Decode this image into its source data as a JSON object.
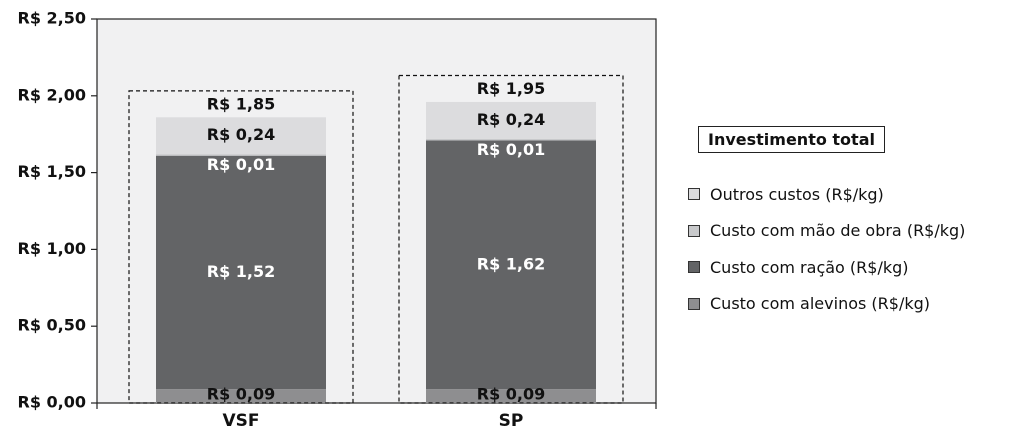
{
  "chart_data": {
    "type": "bar",
    "stacked": true,
    "categories": [
      "VSF",
      "SP"
    ],
    "series": [
      {
        "name": "Custo com alevinos (R$/kg)",
        "values": [
          0.09,
          0.09
        ],
        "color": "#8e8e90",
        "labels": [
          "R$ 0,09",
          "R$ 0,09"
        ],
        "label_color": "#111111"
      },
      {
        "name": "Custo com ração (R$/kg)",
        "values": [
          1.52,
          1.62
        ],
        "color": "#636466",
        "labels": [
          "R$ 1,52",
          "R$ 1,62"
        ],
        "label_color": "#ffffff"
      },
      {
        "name": "Custo com mão de obra (R$/kg)",
        "values": [
          0.01,
          0.01
        ],
        "color": "#c8c9cb",
        "labels": [
          "R$ 0,01",
          "R$ 0,01"
        ],
        "label_color": "#ffffff"
      },
      {
        "name": "Outros custos (R$/kg)",
        "values": [
          0.24,
          0.24
        ],
        "color": "#dcdcde",
        "labels": [
          "R$ 0,24",
          "R$ 0,24"
        ],
        "label_color": "#111111"
      }
    ],
    "totals": [
      1.85,
      1.95
    ],
    "total_labels": [
      "R$ 1,85",
      "R$ 1,95"
    ],
    "ylim": [
      0,
      2.5
    ],
    "y_ticks": [
      0,
      0.5,
      1.0,
      1.5,
      2.0,
      2.5
    ],
    "y_tick_labels": [
      "R$ 0,00",
      "R$ 0,50",
      "R$ 1,00",
      "R$ 1,50",
      "R$ 2,00",
      "R$ 2,50"
    ],
    "plot_background": "#f1f1f2",
    "legend_title": "Investimento total",
    "legend_placement": "right",
    "grid": false
  },
  "legend": {
    "title": "Investimento total",
    "items": [
      {
        "label": "Outros custos (R$/kg)",
        "color": "#dcdcde"
      },
      {
        "label": "Custo com mão de obra (R$/kg)",
        "color": "#c8c9cb"
      },
      {
        "label": "Custo com ração (R$/kg)",
        "color": "#636466"
      },
      {
        "label": "Custo com alevinos (R$/kg)",
        "color": "#8e8e90"
      }
    ]
  }
}
